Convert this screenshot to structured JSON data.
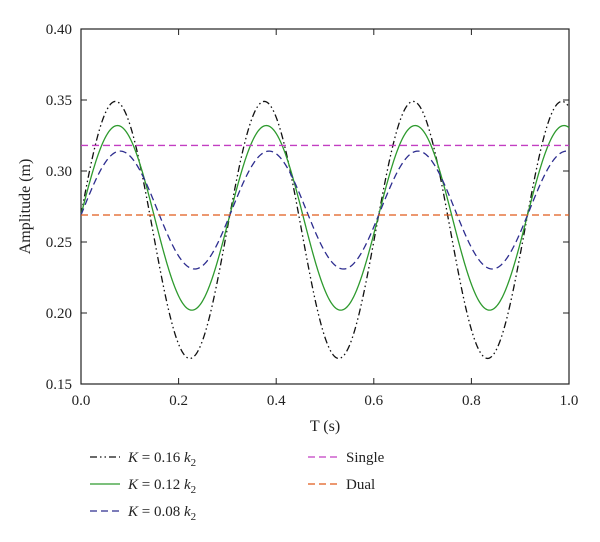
{
  "chart_data": {
    "type": "line",
    "xlabel": "T (s)",
    "ylabel": "Amplitude (m)",
    "xlim": [
      0.0,
      1.0
    ],
    "ylim": [
      0.15,
      0.4
    ],
    "x_ticks": [
      "0.0",
      "0.2",
      "0.4",
      "0.6",
      "0.8",
      "1.0"
    ],
    "y_ticks": [
      "0.15",
      "0.20",
      "0.25",
      "0.30",
      "0.35",
      "0.40"
    ],
    "grid": false,
    "legend_position": "bottom",
    "sine_period_s": 0.305,
    "crossing_value": 0.269,
    "series": [
      {
        "name_var": "K",
        "name_eq": " = 0.16 ",
        "name_k": "k",
        "name_sub": "2",
        "color": "#111111",
        "dash": "dash-dot-dot",
        "kind": "sine",
        "min": 0.168,
        "max": 0.349,
        "x": [
          0.0,
          0.076,
          0.153,
          0.229,
          0.305,
          0.381,
          0.458,
          0.534,
          0.61,
          0.686,
          0.763,
          0.839,
          0.915,
          0.991
        ],
        "y": [
          0.275,
          0.349,
          0.275,
          0.168,
          0.275,
          0.349,
          0.275,
          0.168,
          0.275,
          0.349,
          0.275,
          0.168,
          0.275,
          0.349
        ]
      },
      {
        "name_var": "K",
        "name_eq": " = 0.12 ",
        "name_k": "k",
        "name_sub": "2",
        "color": "#2e9a2e",
        "dash": "solid",
        "kind": "sine",
        "min": 0.202,
        "max": 0.332,
        "x": [
          0.0,
          0.076,
          0.153,
          0.229,
          0.305,
          0.381,
          0.458,
          0.534,
          0.61,
          0.686,
          0.763,
          0.839,
          0.915,
          0.991
        ],
        "y": [
          0.275,
          0.332,
          0.275,
          0.202,
          0.275,
          0.332,
          0.275,
          0.202,
          0.275,
          0.332,
          0.275,
          0.202,
          0.275,
          0.332
        ]
      },
      {
        "name_var": "K",
        "name_eq": " = 0.08 ",
        "name_k": "k",
        "name_sub": "2",
        "color": "#2d2d8f",
        "dash": "dash",
        "kind": "sine",
        "min": 0.231,
        "max": 0.314,
        "x": [
          0.0,
          0.076,
          0.153,
          0.229,
          0.305,
          0.381,
          0.458,
          0.534,
          0.61,
          0.686,
          0.763,
          0.839,
          0.915,
          0.991
        ],
        "y": [
          0.275,
          0.314,
          0.275,
          0.231,
          0.275,
          0.314,
          0.275,
          0.231,
          0.275,
          0.314,
          0.275,
          0.231,
          0.275,
          0.314
        ]
      },
      {
        "name": "Single",
        "color": "#c23ec2",
        "dash": "dash",
        "kind": "constant",
        "x": [
          0.0,
          1.0
        ],
        "y": [
          0.318,
          0.318
        ]
      },
      {
        "name": "Dual",
        "color": "#e05a1a",
        "dash": "dash",
        "kind": "constant",
        "x": [
          0.0,
          1.0
        ],
        "y": [
          0.269,
          0.269
        ]
      }
    ]
  }
}
